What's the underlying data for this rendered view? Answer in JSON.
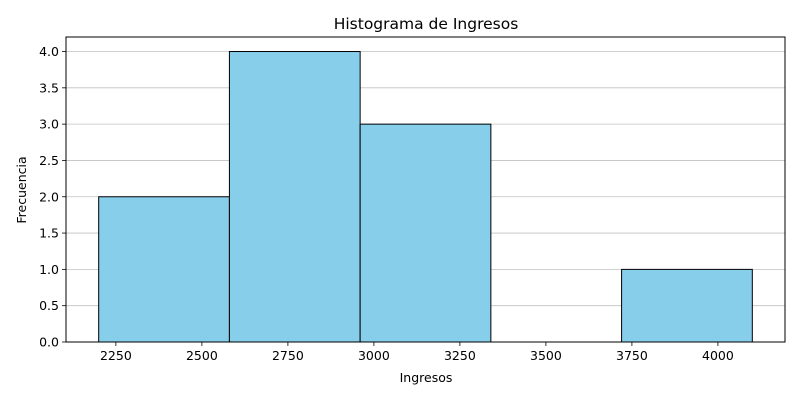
{
  "chart_data": {
    "type": "bar",
    "subtype": "histogram",
    "title": "Histograma de Ingresos",
    "xlabel": "Ingresos",
    "ylabel": "Frecuencia",
    "bins": [
      {
        "start": 2200,
        "end": 2580,
        "count": 2
      },
      {
        "start": 2580,
        "end": 2960,
        "count": 4
      },
      {
        "start": 2960,
        "end": 3340,
        "count": 3
      },
      {
        "start": 3340,
        "end": 3720,
        "count": 0
      },
      {
        "start": 3720,
        "end": 4100,
        "count": 1
      }
    ],
    "xlim": [
      2105,
      4195
    ],
    "ylim": [
      0,
      4.2
    ],
    "xticks": [
      2250,
      2500,
      2750,
      3000,
      3250,
      3500,
      3750,
      4000
    ],
    "yticks": [
      "0.0",
      "0.5",
      "1.0",
      "1.5",
      "2.0",
      "2.5",
      "3.0",
      "3.5",
      "4.0"
    ],
    "grid": "y",
    "bar_color": "#87ceeb",
    "edge_color": "#000000",
    "grid_color": "#c0c0c0"
  }
}
